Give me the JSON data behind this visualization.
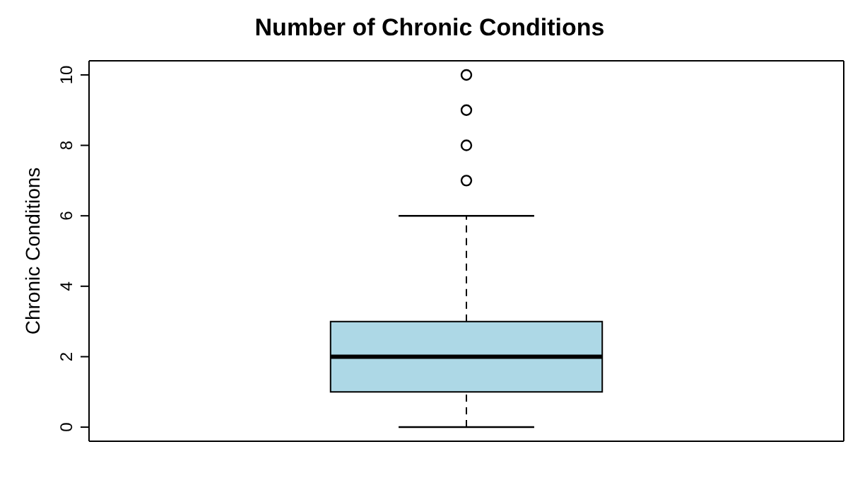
{
  "chart_data": {
    "type": "box",
    "title": "Number of Chronic Conditions",
    "ylabel": "Chronic Conditions",
    "categories": [
      null
    ],
    "color": "#add8e6",
    "boxes": [
      {
        "low": 0,
        "q1": 1,
        "median": 2,
        "q3": 3,
        "high": 6,
        "outliers": [
          7,
          8,
          9,
          10
        ]
      }
    ],
    "ylim": [
      -0.4,
      10.4
    ],
    "yticks": [
      0,
      2,
      4,
      6,
      8,
      10
    ]
  }
}
